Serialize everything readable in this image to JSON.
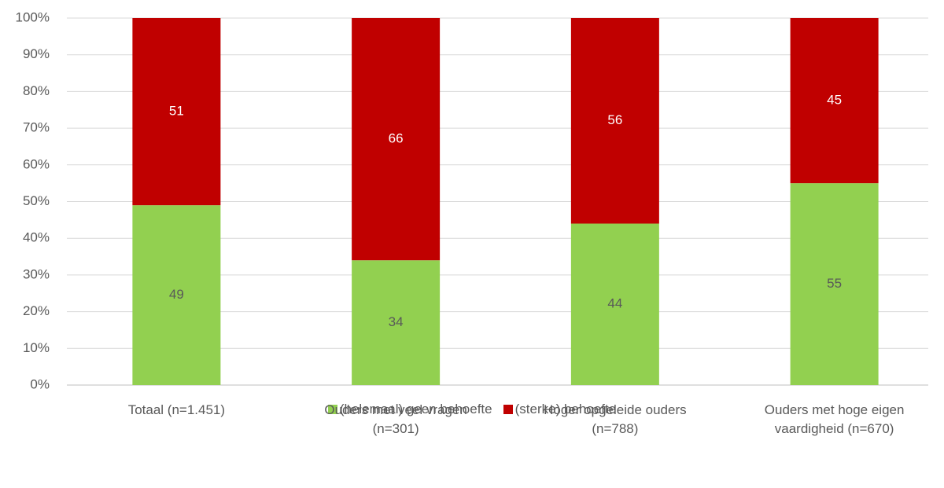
{
  "chart_data": {
    "type": "stacked_bar",
    "categories": [
      "Totaal (n=1.451)",
      "Ouders met veel vragen (n=301)",
      "Hoger opgeleide ouders (n=788)",
      "Ouders met hoge eigen vaardigheid (n=670)"
    ],
    "series": [
      {
        "name": "(helemaal) geen behoefte",
        "color": "#92d050",
        "values": [
          49,
          34,
          44,
          55
        ]
      },
      {
        "name": "(sterke) behoefte",
        "color": "#c00000",
        "values": [
          51,
          66,
          56,
          45
        ]
      }
    ],
    "ylim": [
      0,
      100
    ],
    "yticks": [
      {
        "value": 0,
        "label": "0%"
      },
      {
        "value": 10,
        "label": "10%"
      },
      {
        "value": 20,
        "label": "20%"
      },
      {
        "value": 30,
        "label": "30%"
      },
      {
        "value": 40,
        "label": "40%"
      },
      {
        "value": 50,
        "label": "50%"
      },
      {
        "value": 60,
        "label": "60%"
      },
      {
        "value": 70,
        "label": "70%"
      },
      {
        "value": 80,
        "label": "80%"
      },
      {
        "value": 90,
        "label": "90%"
      },
      {
        "value": 100,
        "label": "100%"
      }
    ],
    "grid": true,
    "legend": "bottom"
  }
}
